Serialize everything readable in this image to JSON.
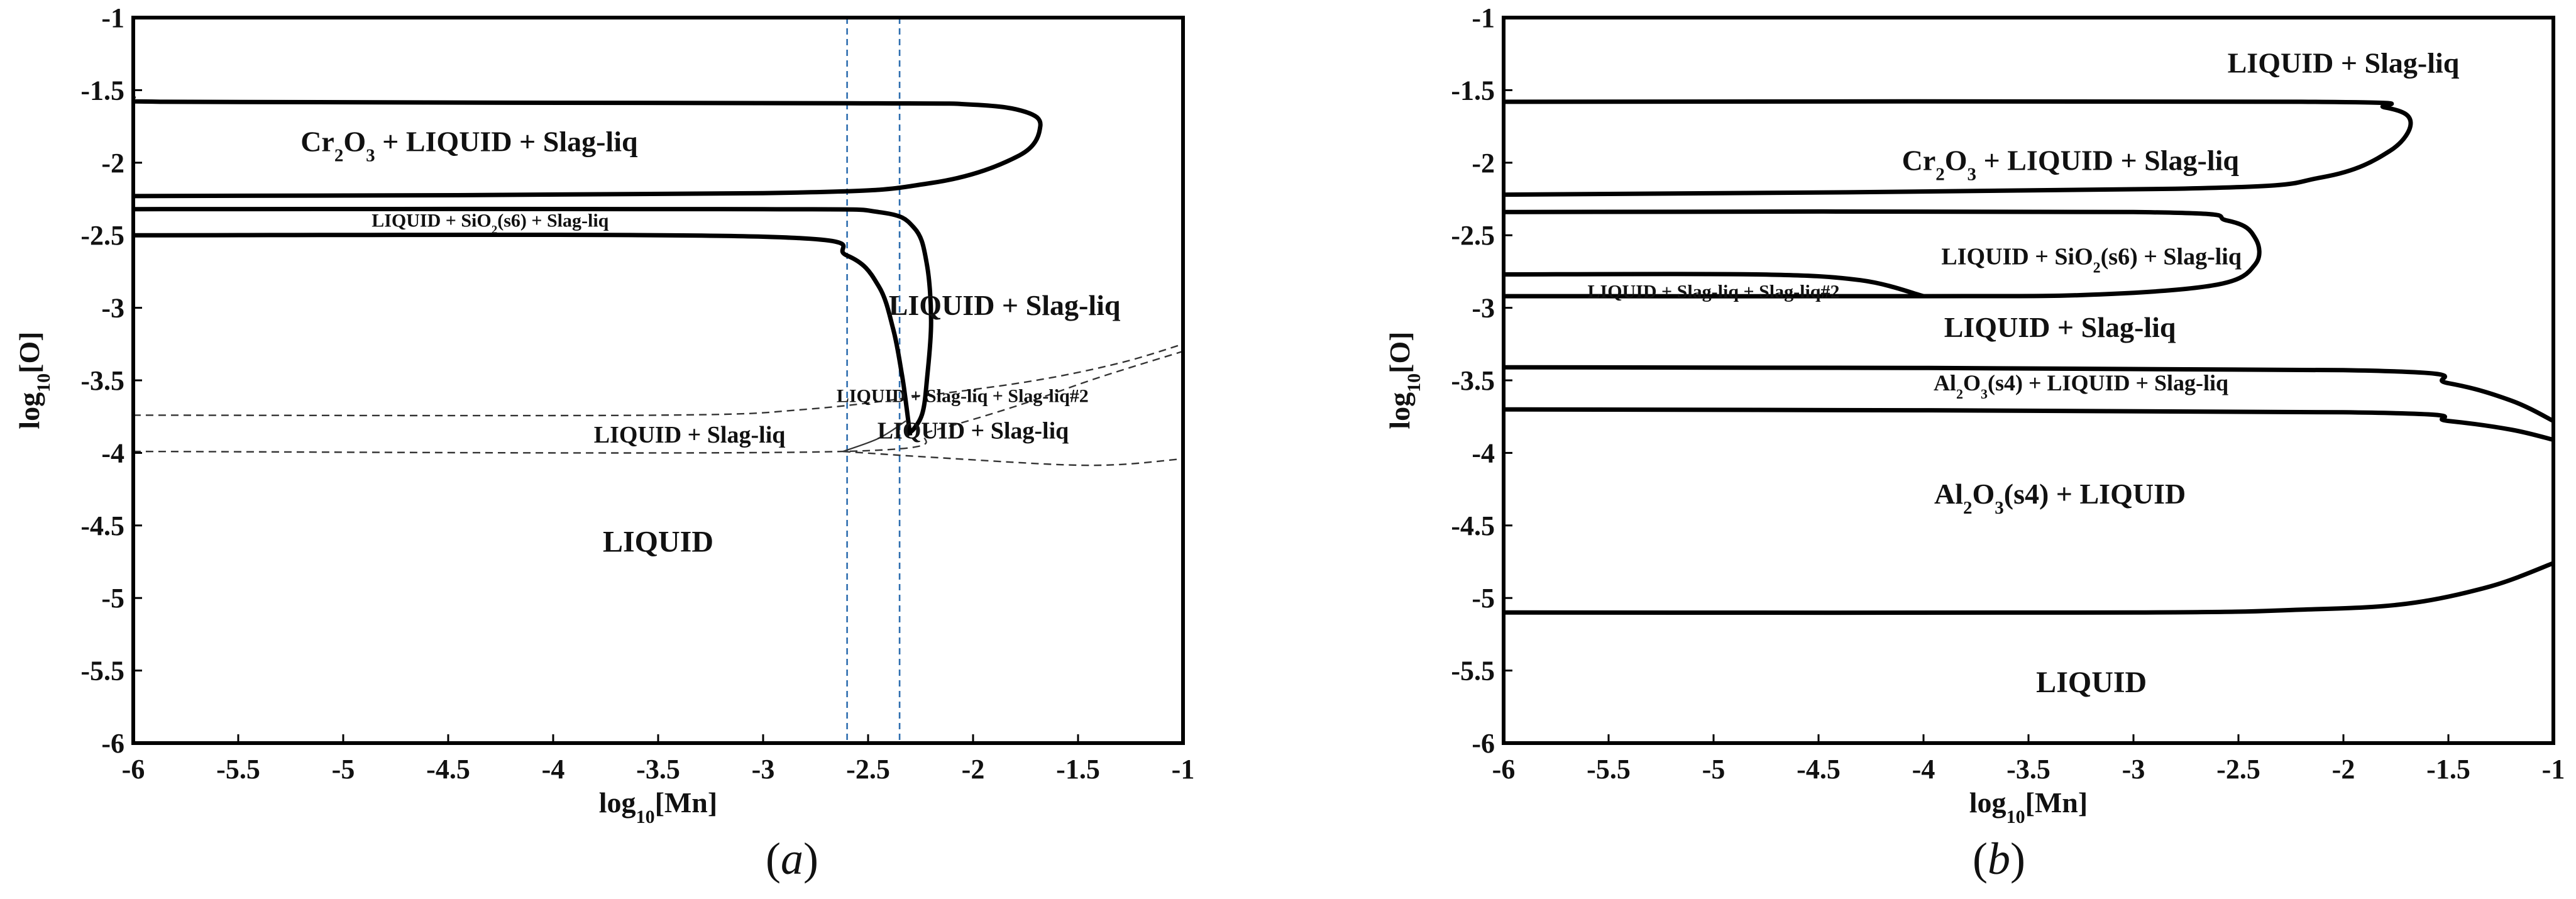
{
  "chart_data": [
    {
      "type": "line",
      "panel": "(a)",
      "xlabel": "log10[Mn]",
      "ylabel": "log10[O]",
      "xlim": [
        -6,
        -1
      ],
      "ylim": [
        -6,
        -1
      ],
      "x_ticks": [
        "-6",
        "-5.5",
        "-5",
        "-4.5",
        "-4",
        "-3.5",
        "-3",
        "-2.5",
        "-2",
        "-1.5",
        "-1"
      ],
      "y_ticks": [
        "-1",
        "-1.5",
        "-2",
        "-2.5",
        "-3",
        "-3.5",
        "-4",
        "-4.5",
        "-5",
        "-5.5",
        "-6"
      ],
      "vertical_reference_lines_x": [
        -2.6,
        -2.35
      ],
      "vertical_reference_color": "#2f6fb0",
      "regions": [
        {
          "name": "Cr2O3-LIQUID-Slag",
          "pre": "Cr",
          "sub1": "2",
          "mid": "O",
          "sub2": "3",
          "post": " + LIQUID + Slag-liq",
          "x": -4.4,
          "y": -1.92,
          "size": 46,
          "color": "#111111"
        },
        {
          "name": "LIQUID-SiO2-Slag",
          "pre": "LIQUID + SiO",
          "sub1": "2",
          "mid": "(s6) + Slag-liq",
          "sub2": "",
          "post": "",
          "x": -4.3,
          "y": -2.44,
          "size": 30,
          "color": "#b22222"
        },
        {
          "name": "LIQUID-Slag-right",
          "pre": "LIQUID + Slag-liq",
          "x": -1.85,
          "y": -3.05,
          "size": 46,
          "color": "#111111"
        },
        {
          "name": "LIQUID-Slag-Slag2",
          "pre": "LIQUID + Slag-liq + Slag-liq#2",
          "x": -2.05,
          "y": -3.65,
          "size": 30,
          "color": "#111111"
        },
        {
          "name": "LIQUID-Slag-mid",
          "pre": "LIQUID + Slag-liq",
          "x": -2.0,
          "y": -3.9,
          "size": 38,
          "color": "#111111"
        },
        {
          "name": "LIQUID-Slag-left",
          "pre": "LIQUID + Slag-liq",
          "x": -3.35,
          "y": -3.93,
          "size": 38,
          "color": "#111111"
        },
        {
          "name": "LIQUID",
          "pre": "LIQUID",
          "x": -3.5,
          "y": -4.68,
          "size": 48,
          "color": "#111111"
        }
      ],
      "bold_curves": [
        [
          [
            -6.0,
            -1.55
          ],
          [
            -5.85,
            -1.58
          ],
          [
            -2.6,
            -1.59
          ],
          [
            -2.0,
            -1.6
          ],
          [
            -1.75,
            -1.65
          ],
          [
            -1.68,
            -1.75
          ],
          [
            -1.78,
            -1.95
          ],
          [
            -2.2,
            -2.14
          ],
          [
            -3.0,
            -2.21
          ],
          [
            -6.0,
            -2.23
          ]
        ],
        [
          [
            -6.0,
            -2.32
          ],
          [
            -3.0,
            -2.32
          ],
          [
            -2.45,
            -2.34
          ],
          [
            -2.28,
            -2.45
          ],
          [
            -2.22,
            -2.7
          ],
          [
            -2.2,
            -3.1
          ],
          [
            -2.22,
            -3.5
          ],
          [
            -2.24,
            -3.72
          ],
          [
            -2.28,
            -3.83
          ],
          [
            -2.32,
            -3.88
          ]
        ],
        [
          [
            -6.0,
            -2.5
          ],
          [
            -3.0,
            -2.51
          ],
          [
            -2.6,
            -2.64
          ],
          [
            -2.45,
            -2.85
          ],
          [
            -2.38,
            -3.15
          ],
          [
            -2.34,
            -3.45
          ],
          [
            -2.32,
            -3.65
          ],
          [
            -2.3,
            -3.88
          ]
        ]
      ],
      "thin_curves": [
        [
          [
            -2.62,
            -3.99
          ],
          [
            -2.45,
            -3.9
          ],
          [
            -2.32,
            -3.78
          ]
        ]
      ],
      "dashed_curves": [
        [
          [
            -6.0,
            -3.74
          ],
          [
            -3.5,
            -3.74
          ],
          [
            -2.8,
            -3.7
          ],
          [
            -2.2,
            -3.6
          ],
          [
            -1.7,
            -3.5
          ],
          [
            -1.3,
            -3.38
          ],
          [
            -1.0,
            -3.25
          ]
        ],
        [
          [
            -6.0,
            -3.99
          ],
          [
            -2.62,
            -3.99
          ],
          [
            -2.2,
            -3.85
          ],
          [
            -1.8,
            -3.68
          ],
          [
            -1.4,
            -3.48
          ],
          [
            -1.0,
            -3.3
          ]
        ],
        [
          [
            -2.62,
            -3.99
          ],
          [
            -2.2,
            -4.03
          ],
          [
            -1.6,
            -4.08
          ],
          [
            -1.3,
            -4.08
          ],
          [
            -1.0,
            -4.04
          ]
        ]
      ]
    },
    {
      "type": "line",
      "panel": "(b)",
      "xlabel": "log10[Mn]",
      "ylabel": "log10[O]",
      "xlim": [
        -6,
        -1
      ],
      "ylim": [
        -6,
        -1
      ],
      "x_ticks": [
        "-6",
        "-5.5",
        "-5",
        "-4.5",
        "-4",
        "-3.5",
        "-3",
        "-2.5",
        "-2",
        "-1.5",
        "-1"
      ],
      "y_ticks": [
        "-1",
        "-1.5",
        "-2",
        "-2.5",
        "-3",
        "-3.5",
        "-4",
        "-4.5",
        "-5",
        "-5.5",
        "-6"
      ],
      "regions": [
        {
          "name": "LIQUID-Slag-top",
          "pre": "LIQUID + Slag-liq",
          "x": -2.0,
          "y": -1.38,
          "size": 46,
          "color": "#111111"
        },
        {
          "name": "Cr2O3-LIQUID-Slag",
          "pre": "Cr",
          "sub1": "2",
          "mid": "O",
          "sub2": "3",
          "post": " + LIQUID + Slag-liq",
          "x": -3.3,
          "y": -2.05,
          "size": 46,
          "color": "#111111"
        },
        {
          "name": "LIQUID-SiO2-Slag",
          "pre": "LIQUID + SiO",
          "sub1": "2",
          "mid": "(s6) + Slag-liq",
          "sub2": "",
          "post": "",
          "x": -3.2,
          "y": -2.7,
          "size": 38,
          "color": "#111111"
        },
        {
          "name": "LIQUID-Slag-Slag2",
          "pre": "LIQUID + Slag-liq + Slag-liq#2",
          "x": -5.0,
          "y": -2.93,
          "size": 30,
          "color": "#111111"
        },
        {
          "name": "LIQUID-Slag-mid",
          "pre": "LIQUID + Slag-liq",
          "x": -3.35,
          "y": -3.2,
          "size": 46,
          "color": "#111111"
        },
        {
          "name": "Al2O3-LIQUID-Slag",
          "pre": "Al",
          "sub1": "2",
          "mid": "O",
          "sub2": "3",
          "post": "(s4) + LIQUID + Slag-liq",
          "x": -3.25,
          "y": -3.57,
          "size": 36,
          "color": "#111111"
        },
        {
          "name": "Al2O3-LIQUID",
          "pre": "Al",
          "sub1": "2",
          "mid": "O",
          "sub2": "3",
          "post": "(s4) + LIQUID",
          "x": -3.35,
          "y": -4.35,
          "size": 46,
          "color": "#111111"
        },
        {
          "name": "LIQUID",
          "pre": "LIQUID",
          "x": -3.2,
          "y": -5.65,
          "size": 48,
          "color": "#111111"
        }
      ],
      "bold_curves": [
        [
          [
            -6.0,
            -1.58
          ],
          [
            -2.2,
            -1.58
          ],
          [
            -1.8,
            -1.62
          ],
          [
            -1.68,
            -1.72
          ],
          [
            -1.78,
            -1.92
          ],
          [
            -2.1,
            -2.1
          ],
          [
            -2.8,
            -2.18
          ],
          [
            -6.0,
            -2.22
          ]
        ],
        [
          [
            -6.0,
            -2.34
          ],
          [
            -3.0,
            -2.34
          ],
          [
            -2.55,
            -2.4
          ],
          [
            -2.42,
            -2.52
          ],
          [
            -2.42,
            -2.7
          ],
          [
            -2.6,
            -2.84
          ],
          [
            -3.2,
            -2.91
          ],
          [
            -4.0,
            -2.92
          ],
          [
            -6.0,
            -2.92
          ]
        ],
        [
          [
            -6.0,
            -2.77
          ],
          [
            -4.8,
            -2.77
          ],
          [
            -4.3,
            -2.81
          ],
          [
            -4.0,
            -2.92
          ]
        ],
        [
          [
            -6.0,
            -3.41
          ],
          [
            -2.0,
            -3.43
          ],
          [
            -1.5,
            -3.52
          ],
          [
            -1.2,
            -3.64
          ],
          [
            -1.0,
            -3.78
          ]
        ],
        [
          [
            -6.0,
            -3.7
          ],
          [
            -2.0,
            -3.72
          ],
          [
            -1.5,
            -3.78
          ],
          [
            -1.2,
            -3.84
          ],
          [
            -1.0,
            -3.91
          ]
        ],
        [
          [
            -6.0,
            -5.1
          ],
          [
            -3.0,
            -5.1
          ],
          [
            -2.2,
            -5.08
          ],
          [
            -1.7,
            -5.04
          ],
          [
            -1.3,
            -4.92
          ],
          [
            -1.0,
            -4.76
          ]
        ]
      ],
      "thin_curves": [],
      "dashed_curves": []
    }
  ]
}
